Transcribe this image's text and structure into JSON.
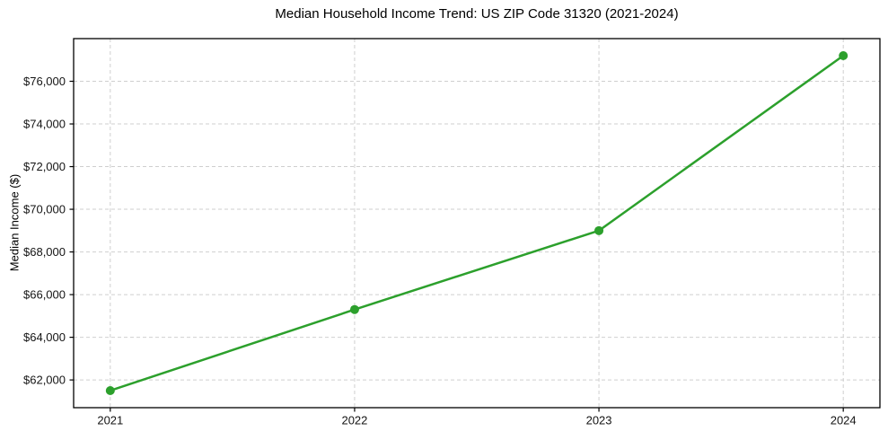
{
  "chart_data": {
    "type": "line",
    "title": "Median Household Income Trend: US ZIP Code 31320 (2021-2024)",
    "xlabel": "",
    "ylabel": "Median Income ($)",
    "x": [
      2021,
      2022,
      2023,
      2024
    ],
    "series": [
      {
        "name": "Median Household Income",
        "values": [
          61500,
          65300,
          69000,
          77200
        ]
      }
    ],
    "xtick_values": [
      2021,
      2022,
      2023,
      2024
    ],
    "xtick_labels": [
      "2021",
      "2022",
      "2023",
      "2024"
    ],
    "ytick_values": [
      62000,
      64000,
      66000,
      68000,
      70000,
      72000,
      74000,
      76000
    ],
    "ytick_labels": [
      "$62,000",
      "$64,000",
      "$66,000",
      "$68,000",
      "$70,000",
      "$72,000",
      "$74,000",
      "$76,000"
    ],
    "xlim": [
      2020.85,
      2024.15
    ],
    "ylim": [
      60700,
      78000
    ],
    "grid": true,
    "grid_style": "dashed",
    "legend": false,
    "colors": {
      "line": "#2ca02c",
      "marker": "#2ca02c",
      "grid": "#cfcfcf",
      "spine": "#000000",
      "text": "#141414",
      "background": "#ffffff"
    }
  }
}
